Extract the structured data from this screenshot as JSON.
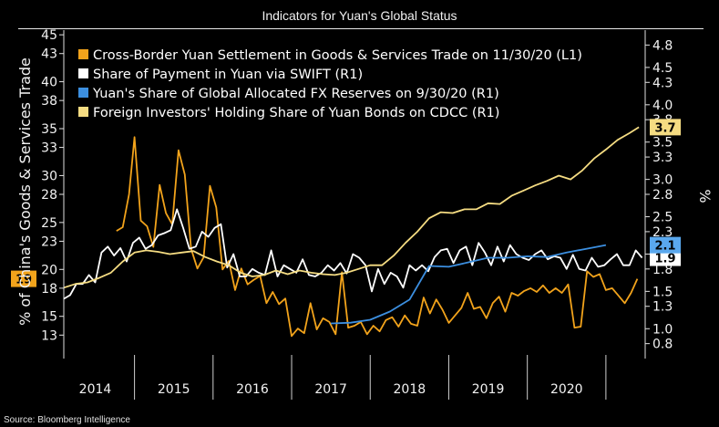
{
  "title": "Indicators for Yuan's Global Status",
  "source": "Source: Bloomberg Intelligence",
  "chart_data": {
    "type": "line",
    "ylabel": "% of China's Goods & Services Trade",
    "ylabel_right": "%",
    "left_axis": {
      "range": [
        10.5,
        45.5
      ],
      "ticks": [
        13,
        15,
        18,
        20,
        23,
        25,
        28,
        30,
        33,
        35,
        38,
        40,
        43,
        45
      ]
    },
    "right_axis": {
      "range": [
        0.6,
        5.0
      ],
      "ticks": [
        0.8,
        1.0,
        1.3,
        1.5,
        1.8,
        2.0,
        2.3,
        2.5,
        2.8,
        3.0,
        3.3,
        3.5,
        3.8,
        4.0,
        4.3,
        4.5,
        4.8
      ]
    },
    "x_range": [
      2013.6,
      2021.0
    ],
    "x_labels": [
      {
        "label": "2014",
        "pos": 2014.0
      },
      {
        "label": "2015",
        "pos": 2015.0
      },
      {
        "label": "2016",
        "pos": 2016.0
      },
      {
        "label": "2017",
        "pos": 2017.0
      },
      {
        "label": "2018",
        "pos": 2018.0
      },
      {
        "label": "2019",
        "pos": 2019.0
      },
      {
        "label": "2020",
        "pos": 2020.0
      }
    ],
    "x_year_boundaries": [
      2014.5,
      2015.5,
      2016.5,
      2017.5,
      2018.5,
      2019.5,
      2020.5
    ],
    "legend_position": "top-left",
    "grid": false,
    "series": [
      {
        "name": "Cross-Border Yuan Settlement in Goods & Services Trade on 11/30/20 (L1)",
        "axis": "left",
        "color": "#f2a31b",
        "last_label": "19",
        "x": [
          2014.27,
          2014.35,
          2014.43,
          2014.5,
          2014.58,
          2014.66,
          2014.74,
          2014.82,
          2014.9,
          2014.98,
          2015.06,
          2015.14,
          2015.22,
          2015.3,
          2015.38,
          2015.46,
          2015.54,
          2015.62,
          2015.7,
          2015.78,
          2015.86,
          2015.94,
          2016.02,
          2016.1,
          2016.18,
          2016.26,
          2016.34,
          2016.42,
          2016.5,
          2016.58,
          2016.66,
          2016.74,
          2016.82,
          2016.9,
          2016.98,
          2017.06,
          2017.14,
          2017.22,
          2017.3,
          2017.38,
          2017.46,
          2017.54,
          2017.62,
          2017.7,
          2017.78,
          2017.86,
          2017.94,
          2018.02,
          2018.1,
          2018.18,
          2018.26,
          2018.34,
          2018.42,
          2018.5,
          2018.58,
          2018.66,
          2018.74,
          2018.82,
          2018.9,
          2018.98,
          2019.06,
          2019.14,
          2019.22,
          2019.3,
          2019.38,
          2019.46,
          2019.54,
          2019.62,
          2019.7,
          2019.78,
          2019.86,
          2019.94,
          2020.02,
          2020.1,
          2020.18,
          2020.26,
          2020.34,
          2020.42,
          2020.5,
          2020.58,
          2020.66,
          2020.74,
          2020.82,
          2020.9
        ],
        "y": [
          24.1,
          24.5,
          28.0,
          34.1,
          25.2,
          24.6,
          22.4,
          29.0,
          26.0,
          24.8,
          32.7,
          30.1,
          22.2,
          20.1,
          21.3,
          28.9,
          26.6,
          20.0,
          20.9,
          17.8,
          20.1,
          18.4,
          18.9,
          19.3,
          16.4,
          17.6,
          16.3,
          16.9,
          12.9,
          13.7,
          13.2,
          16.4,
          13.6,
          14.8,
          14.4,
          13.1,
          19.7,
          13.8,
          14.0,
          14.4,
          13.1,
          14.0,
          13.4,
          14.6,
          14.9,
          13.9,
          15.1,
          14.2,
          14.0,
          17.0,
          15.3,
          16.8,
          15.7,
          14.3,
          15.1,
          15.9,
          17.5,
          15.8,
          16.0,
          14.8,
          16.4,
          17.1,
          15.5,
          17.5,
          17.2,
          17.7,
          18.0,
          17.6,
          18.3,
          17.5,
          18.0,
          17.5,
          18.4,
          13.8,
          13.9,
          19.8,
          19.2,
          19.5,
          17.8,
          18.0,
          17.2,
          16.4,
          17.5,
          19.0
        ]
      },
      {
        "name": "Share of Payment in Yuan via SWIFT (R1)",
        "axis": "right",
        "color": "#ffffff",
        "last_label": "1.9",
        "x": [
          2013.6,
          2013.68,
          2013.76,
          2013.84,
          2013.92,
          2014.0,
          2014.08,
          2014.16,
          2014.24,
          2014.32,
          2014.4,
          2014.48,
          2014.56,
          2014.64,
          2014.72,
          2014.8,
          2014.88,
          2014.96,
          2015.04,
          2015.12,
          2015.2,
          2015.28,
          2015.36,
          2015.44,
          2015.52,
          2015.6,
          2015.68,
          2015.76,
          2015.84,
          2015.92,
          2016.0,
          2016.08,
          2016.16,
          2016.24,
          2016.32,
          2016.4,
          2016.48,
          2016.56,
          2016.64,
          2016.72,
          2016.8,
          2016.88,
          2016.96,
          2017.04,
          2017.12,
          2017.2,
          2017.28,
          2017.36,
          2017.44,
          2017.52,
          2017.6,
          2017.68,
          2017.76,
          2017.84,
          2017.92,
          2018.0,
          2018.08,
          2018.16,
          2018.24,
          2018.32,
          2018.4,
          2018.48,
          2018.56,
          2018.64,
          2018.72,
          2018.8,
          2018.88,
          2018.96,
          2019.04,
          2019.12,
          2019.2,
          2019.28,
          2019.36,
          2019.44,
          2019.52,
          2019.6,
          2019.68,
          2019.76,
          2019.84,
          2019.92,
          2020.0,
          2020.08,
          2020.16,
          2020.24,
          2020.32,
          2020.4,
          2020.48,
          2020.56,
          2020.64,
          2020.72,
          2020.8,
          2020.88,
          2020.96
        ],
        "y": [
          1.4,
          1.45,
          1.6,
          1.6,
          1.72,
          1.62,
          2.02,
          2.1,
          1.98,
          2.08,
          1.9,
          2.15,
          2.22,
          2.07,
          2.12,
          2.25,
          2.28,
          2.32,
          2.6,
          2.35,
          2.07,
          2.1,
          2.3,
          2.23,
          2.35,
          2.4,
          1.82,
          2.0,
          1.7,
          1.7,
          1.8,
          1.75,
          1.72,
          2.05,
          1.7,
          1.85,
          1.8,
          1.75,
          1.93,
          1.72,
          1.7,
          1.75,
          1.85,
          1.78,
          1.88,
          1.74,
          2.0,
          1.95,
          1.85,
          1.5,
          1.8,
          1.6,
          1.75,
          1.7,
          1.55,
          1.85,
          1.78,
          1.85,
          1.77,
          1.96,
          2.05,
          2.07,
          1.88,
          2.05,
          2.1,
          1.85,
          2.15,
          2.02,
          1.85,
          2.1,
          1.9,
          2.12,
          2.0,
          1.95,
          1.92,
          2.0,
          2.05,
          1.93,
          1.97,
          1.95,
          1.8,
          1.99,
          1.8,
          1.78,
          1.95,
          1.83,
          1.85,
          1.93,
          2.0,
          1.85,
          1.85,
          2.05,
          1.95
        ]
      },
      {
        "name": "Yuan's Share of Global Allocated FX Reserves on 9/30/20 (R1)",
        "axis": "right",
        "color": "#3c8fe0",
        "last_label": "2.1",
        "x": [
          2017.0,
          2017.25,
          2017.5,
          2017.75,
          2018.0,
          2018.25,
          2018.5,
          2018.75,
          2019.0,
          2019.25,
          2019.5,
          2019.75,
          2020.0,
          2020.25,
          2020.5
        ],
        "y": [
          1.07,
          1.08,
          1.12,
          1.23,
          1.39,
          1.84,
          1.83,
          1.89,
          1.95,
          1.95,
          1.97,
          1.96,
          2.02,
          2.07,
          2.12
        ]
      },
      {
        "name": "Foreign Investors' Holding Share of Yuan Bonds on CDCC (R1)",
        "axis": "right",
        "color": "#f5dc82",
        "last_label": "3.7",
        "x": [
          2013.6,
          2013.75,
          2013.9,
          2014.05,
          2014.2,
          2014.35,
          2014.5,
          2014.65,
          2014.8,
          2014.95,
          2015.1,
          2015.25,
          2015.4,
          2015.55,
          2015.7,
          2015.85,
          2016.0,
          2016.15,
          2016.3,
          2016.45,
          2016.6,
          2016.75,
          2016.9,
          2017.05,
          2017.2,
          2017.35,
          2017.5,
          2017.65,
          2017.8,
          2017.95,
          2018.1,
          2018.25,
          2018.4,
          2018.55,
          2018.7,
          2018.85,
          2019.0,
          2019.15,
          2019.3,
          2019.45,
          2019.6,
          2019.75,
          2019.9,
          2020.05,
          2020.2,
          2020.35,
          2020.5,
          2020.65,
          2020.8,
          2020.92
        ],
        "y": [
          1.55,
          1.6,
          1.62,
          1.68,
          1.75,
          1.9,
          2.02,
          2.05,
          2.03,
          2.0,
          2.02,
          2.04,
          1.96,
          1.9,
          1.85,
          1.75,
          1.7,
          1.72,
          1.78,
          1.73,
          1.78,
          1.75,
          1.73,
          1.72,
          1.75,
          1.8,
          1.85,
          1.85,
          1.98,
          2.15,
          2.3,
          2.48,
          2.56,
          2.55,
          2.6,
          2.6,
          2.68,
          2.67,
          2.78,
          2.85,
          2.92,
          2.98,
          3.05,
          3.0,
          3.12,
          3.28,
          3.4,
          3.53,
          3.62,
          3.7
        ]
      }
    ]
  }
}
